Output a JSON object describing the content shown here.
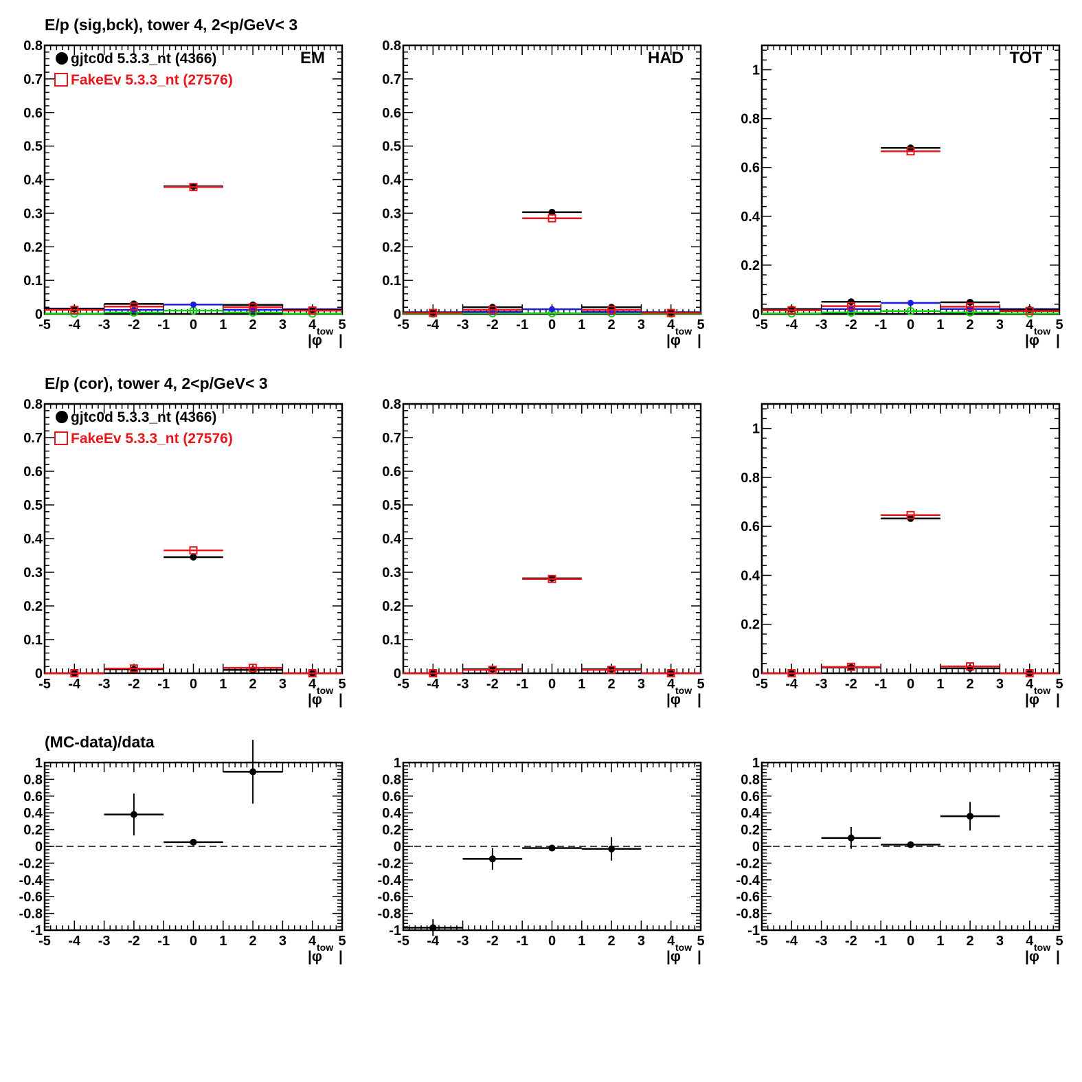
{
  "row_titles": [
    "E/p (sig,bck), tower 4,  2<p/GeV< 3",
    "E/p (cor), tower 4,  2<p/GeV< 3",
    "(MC-data)/data"
  ],
  "legend": [
    {
      "text": "gjtc0d 5.3.3_nt (4366)",
      "color": "#000000",
      "marker": "filled-circle"
    },
    {
      "text": "FakeEv 5.3.3_nt (27576)",
      "color": "#e8161c",
      "marker": "open-square"
    }
  ],
  "x_axis": {
    "label_main": "|φ",
    "label_sub": "tow",
    "label_end": "|",
    "ticks": [
      "-5",
      "-4",
      "-3",
      "-2",
      "-1",
      "0",
      "1",
      "2",
      "3",
      "4",
      "5"
    ]
  },
  "colors": {
    "data": "#000000",
    "mc": "#e8161c",
    "sig": "#1d1de0",
    "bck": "#12d012"
  },
  "chart_data": [
    {
      "type": "scatter",
      "panel": "row1-EM",
      "corner_label": "EM",
      "ylim": [
        0,
        0.8
      ],
      "yticks": [
        "0",
        "0.1",
        "0.2",
        "0.3",
        "0.4",
        "0.5",
        "0.6",
        "0.7",
        "0.8"
      ],
      "bins": [
        -4,
        -2,
        0,
        2,
        4
      ],
      "series": [
        {
          "name": "gjtc0d 5.3.3_nt (4366)",
          "values": [
            0.015,
            0.03,
            0.38,
            0.027,
            0.012
          ],
          "marker": "filled-circle"
        },
        {
          "name": "FakeEv 5.3.3_nt (27576)",
          "values": [
            0.012,
            0.022,
            0.378,
            0.02,
            0.01
          ],
          "marker": "open-square"
        },
        {
          "values": [
            0.016,
            0.012,
            0.028,
            0.012,
            0.014
          ],
          "marker": "small-circle",
          "color": "sig"
        },
        {
          "values": [
            0.001,
            0.004,
            0.01,
            0.004,
            0.001
          ],
          "marker": "open-circle",
          "color": "bck"
        }
      ]
    },
    {
      "type": "scatter",
      "panel": "row1-HAD",
      "corner_label": "HAD",
      "ylim": [
        0,
        0.8
      ],
      "yticks": [
        "0",
        "0.1",
        "0.2",
        "0.3",
        "0.4",
        "0.5",
        "0.6",
        "0.7",
        "0.8"
      ],
      "bins": [
        -4,
        -2,
        0,
        2,
        4
      ],
      "series": [
        {
          "values": [
            0.004,
            0.02,
            0.303,
            0.02,
            0.004
          ],
          "marker": "filled-circle"
        },
        {
          "values": [
            0.003,
            0.012,
            0.285,
            0.012,
            0.003
          ],
          "marker": "open-square"
        },
        {
          "values": [
            0.005,
            0.006,
            0.014,
            0.006,
            0.005
          ],
          "marker": "small-circle",
          "color": "sig"
        },
        {
          "values": [
            0.001,
            0.002,
            0.002,
            0.002,
            0.001
          ],
          "marker": "open-circle",
          "color": "bck"
        }
      ]
    },
    {
      "type": "scatter",
      "panel": "row1-TOT",
      "corner_label": "TOT",
      "ylim": [
        0,
        1.1
      ],
      "yticks": [
        "0",
        "0.2",
        "0.4",
        "0.6",
        "0.8",
        "1"
      ],
      "ytick_values": [
        0,
        0.2,
        0.4,
        0.6,
        0.8,
        1.0
      ],
      "bins": [
        -4,
        -2,
        0,
        2,
        4
      ],
      "series": [
        {
          "values": [
            0.02,
            0.05,
            0.68,
            0.048,
            0.018
          ],
          "marker": "filled-circle"
        },
        {
          "values": [
            0.015,
            0.032,
            0.666,
            0.03,
            0.012
          ],
          "marker": "open-square"
        },
        {
          "values": [
            0.02,
            0.02,
            0.045,
            0.02,
            0.02
          ],
          "marker": "small-circle",
          "color": "sig"
        },
        {
          "values": [
            0.002,
            0.006,
            0.012,
            0.006,
            0.002
          ],
          "marker": "open-circle",
          "color": "bck"
        }
      ]
    },
    {
      "type": "scatter",
      "panel": "row2-EM",
      "ylim": [
        0,
        0.8
      ],
      "yticks": [
        "0",
        "0.1",
        "0.2",
        "0.3",
        "0.4",
        "0.5",
        "0.6",
        "0.7",
        "0.8"
      ],
      "bins": [
        -4,
        -2,
        0,
        2,
        4
      ],
      "series": [
        {
          "values": [
            0.0,
            0.012,
            0.345,
            0.01,
            0.0
          ],
          "marker": "filled-circle"
        },
        {
          "values": [
            0.0,
            0.014,
            0.365,
            0.016,
            0.0
          ],
          "marker": "open-square"
        }
      ]
    },
    {
      "type": "scatter",
      "panel": "row2-HAD",
      "ylim": [
        0,
        0.8
      ],
      "yticks": [
        "0",
        "0.1",
        "0.2",
        "0.3",
        "0.4",
        "0.5",
        "0.6",
        "0.7",
        "0.8"
      ],
      "bins": [
        -4,
        -2,
        0,
        2,
        4
      ],
      "series": [
        {
          "values": [
            0.0,
            0.012,
            0.282,
            0.012,
            0.0
          ],
          "marker": "filled-circle"
        },
        {
          "values": [
            0.0,
            0.01,
            0.28,
            0.01,
            0.0
          ],
          "marker": "open-square"
        }
      ]
    },
    {
      "type": "scatter",
      "panel": "row2-TOT",
      "ylim": [
        0,
        1.1
      ],
      "yticks": [
        "0",
        "0.2",
        "0.4",
        "0.6",
        "0.8",
        "1"
      ],
      "ytick_values": [
        0,
        0.2,
        0.4,
        0.6,
        0.8,
        1.0
      ],
      "bins": [
        -4,
        -2,
        0,
        2,
        4
      ],
      "series": [
        {
          "values": [
            0.0,
            0.024,
            0.632,
            0.02,
            0.0
          ],
          "marker": "filled-circle"
        },
        {
          "values": [
            0.0,
            0.026,
            0.646,
            0.028,
            0.0
          ],
          "marker": "open-square"
        }
      ]
    },
    {
      "type": "scatter",
      "panel": "row3-EM",
      "ylim": [
        -1,
        1
      ],
      "yticks": [
        "-1",
        "-0.8",
        "-0.6",
        "-0.4",
        "-0.2",
        "0",
        "0.2",
        "0.4",
        "0.6",
        "0.8",
        "1"
      ],
      "bins": [
        -2,
        0,
        2
      ],
      "series": [
        {
          "values": [
            0.38,
            0.05,
            0.89
          ],
          "errors": [
            0.25,
            0.0,
            0.38
          ],
          "marker": "filled-circle"
        }
      ]
    },
    {
      "type": "scatter",
      "panel": "row3-HAD",
      "ylim": [
        -1,
        1
      ],
      "yticks": [
        "-1",
        "-0.8",
        "-0.6",
        "-0.4",
        "-0.2",
        "0",
        "0.2",
        "0.4",
        "0.6",
        "0.8",
        "1"
      ],
      "bins": [
        -4,
        -2,
        0,
        2
      ],
      "series": [
        {
          "values": [
            -0.97,
            -0.15,
            -0.02,
            -0.03
          ],
          "errors": [
            0.1,
            0.13,
            0.0,
            0.14
          ],
          "marker": "filled-circle"
        }
      ]
    },
    {
      "type": "scatter",
      "panel": "row3-TOT",
      "ylim": [
        -1,
        1
      ],
      "yticks": [
        "-1",
        "-0.8",
        "-0.6",
        "-0.4",
        "-0.2",
        "0",
        "0.2",
        "0.4",
        "0.6",
        "0.8",
        "1"
      ],
      "bins": [
        -2,
        0,
        2
      ],
      "series": [
        {
          "values": [
            0.1,
            0.02,
            0.36
          ],
          "errors": [
            0.13,
            0.0,
            0.17
          ],
          "marker": "filled-circle"
        }
      ]
    }
  ]
}
